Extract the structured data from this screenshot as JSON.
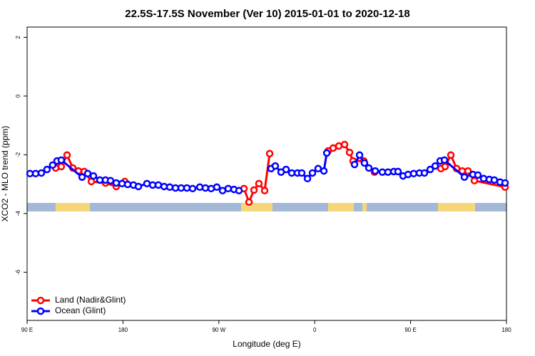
{
  "chart_data": {
    "type": "line",
    "title": "22.5S-17.5S November (Ver 10)   2015-01-01 to 2020-12-18",
    "x_label": "Longitude (deg E)",
    "y_label": "XCO2 - MLO trend (ppm)",
    "xlim": [
      90,
      540
    ],
    "ylim": [
      -7.64,
      2.35
    ],
    "xticks": [
      {
        "value": 90,
        "label": "90 E"
      },
      {
        "value": 180,
        "label": "180"
      },
      {
        "value": 270,
        "label": "90 W"
      },
      {
        "value": 360,
        "label": "0"
      },
      {
        "value": 450,
        "label": "90 E"
      },
      {
        "value": 540,
        "label": "180"
      }
    ],
    "yticks": [
      2,
      0,
      -2,
      -4,
      -6
    ],
    "legend": "bottom-left",
    "series": [
      {
        "name": "Land (Nadir&Glint)",
        "color": "#ff0000",
        "x": [
          116.8,
          122.1,
          127.5,
          132.9,
          138.2,
          143.6,
          150.3,
          163.6,
          173.7,
          181.7,
          null,
          293.6,
          298.3,
          303.0,
          307.6,
          313.0,
          317.7,
          null,
          372.6,
          377.3,
          382.6,
          388.0,
          392.7,
          396.0,
          406.1,
          416.1,
          null,
          478.4,
          482.4,
          487.8,
          493.2,
          498.5,
          503.9,
          509.9,
          538.7
        ],
        "values": [
          -2.45,
          -2.4,
          -2.01,
          -2.45,
          -2.55,
          -2.57,
          -2.91,
          -2.96,
          -3.08,
          -2.91,
          null,
          -3.15,
          -3.61,
          -3.2,
          -2.98,
          -3.22,
          -1.96,
          null,
          -1.87,
          -1.77,
          -1.7,
          -1.65,
          -1.92,
          -2.21,
          -2.21,
          -2.59,
          null,
          -2.47,
          -2.4,
          -2.01,
          -2.47,
          -2.55,
          -2.55,
          -2.88,
          -3.1
        ]
      },
      {
        "name": "Ocean (Glint)",
        "color": "#0000ff",
        "x": [
          92.7,
          98.0,
          103.4,
          108.7,
          114.0,
          118.1,
          122.1,
          141.6,
          146.9,
          152.3,
          158.3,
          163.6,
          168.3,
          173.7,
          179.1,
          184.4,
          189.8,
          194.5,
          202.5,
          207.9,
          213.2,
          218.6,
          223.9,
          229.3,
          234.6,
          240.0,
          245.4,
          252.1,
          257.4,
          262.8,
          268.1,
          273.5,
          278.8,
          284.2,
          288.9,
          null,
          319.0,
          323.0,
          328.4,
          333.1,
          338.4,
          343.8,
          347.8,
          353.2,
          357.9,
          363.2,
          368.6,
          371.3,
          null,
          397.4,
          402.1,
          406.7,
          410.8,
          416.8,
          423.5,
          428.8,
          434.2,
          438.2,
          442.9,
          447.6,
          452.9,
          458.3,
          463.0,
          468.4,
          473.1,
          477.7,
          481.8,
          500.5,
          508.5,
          513.2,
          518.6,
          523.9,
          528.6,
          534.0,
          538.7
        ],
        "values": [
          -2.64,
          -2.64,
          -2.62,
          -2.5,
          -2.35,
          -2.21,
          -2.18,
          -2.76,
          -2.64,
          -2.72,
          -2.86,
          -2.86,
          -2.88,
          -2.96,
          -2.98,
          -3.01,
          -3.03,
          -3.08,
          -2.98,
          -3.03,
          -3.03,
          -3.08,
          -3.1,
          -3.13,
          -3.13,
          -3.13,
          -3.15,
          -3.1,
          -3.13,
          -3.15,
          -3.1,
          -3.22,
          -3.15,
          -3.18,
          -3.22,
          null,
          -2.47,
          -2.38,
          -2.59,
          -2.5,
          -2.62,
          -2.62,
          -2.62,
          -2.81,
          -2.62,
          -2.47,
          -2.55,
          -1.94,
          null,
          -2.33,
          -2.01,
          -2.28,
          -2.45,
          -2.55,
          -2.59,
          -2.59,
          -2.57,
          -2.57,
          -2.72,
          -2.67,
          -2.64,
          -2.62,
          -2.62,
          -2.5,
          -2.38,
          -2.21,
          -2.18,
          -2.76,
          -2.67,
          -2.69,
          -2.81,
          -2.84,
          -2.86,
          -2.93,
          -2.96
        ]
      }
    ]
  }
}
